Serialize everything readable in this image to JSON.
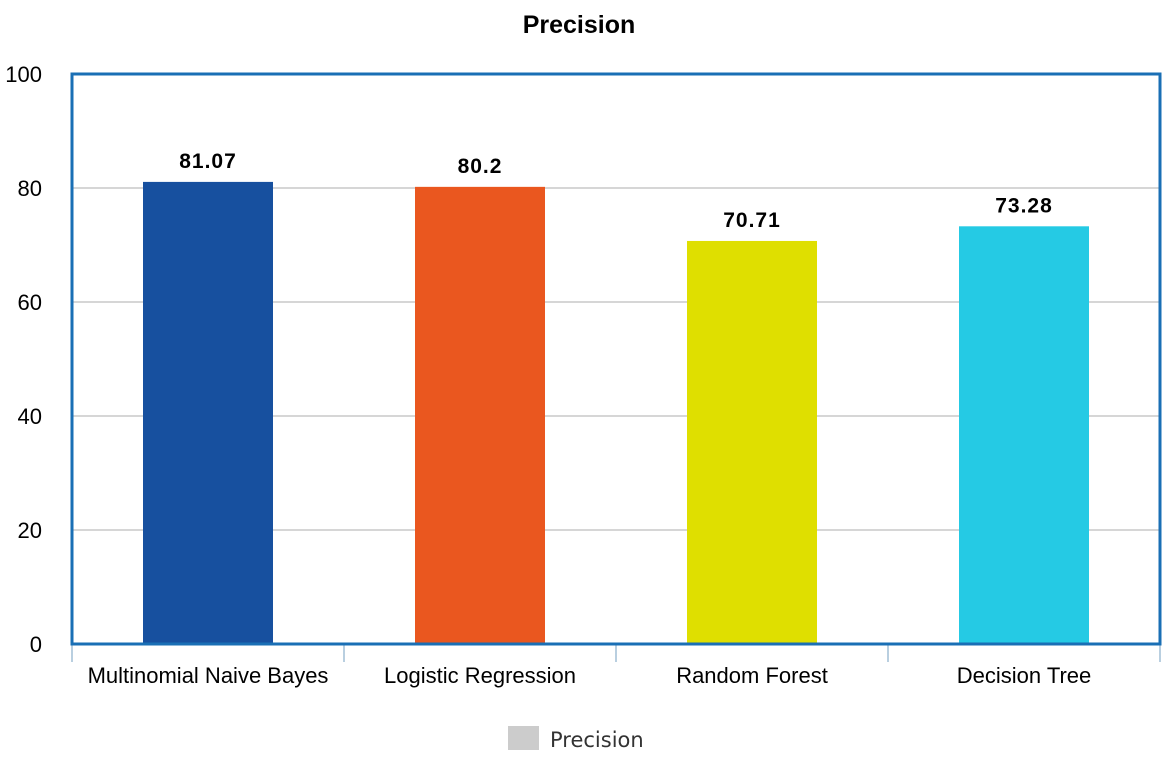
{
  "chart_data": {
    "type": "bar",
    "title": "Precision",
    "categories": [
      "Multinomial Naive Bayes",
      "Logistic Regression",
      "Random Forest",
      "Decision Tree"
    ],
    "series": [
      {
        "name": "Precision",
        "values": [
          81.07,
          80.2,
          70.71,
          73.28
        ],
        "value_labels": [
          "81.07",
          "80.2",
          "70.71",
          "73.28"
        ]
      }
    ],
    "bar_colors": [
      "#17509f",
      "#ea571f",
      "#dfdf00",
      "#25cae4"
    ],
    "legend_color": "#cccccc",
    "ylim": [
      0,
      100
    ],
    "yticks": [
      "0",
      "20",
      "40",
      "60",
      "80",
      "100"
    ],
    "grid": true,
    "legend_position": "bottom-center",
    "frame_color": "#1a6fb5"
  }
}
